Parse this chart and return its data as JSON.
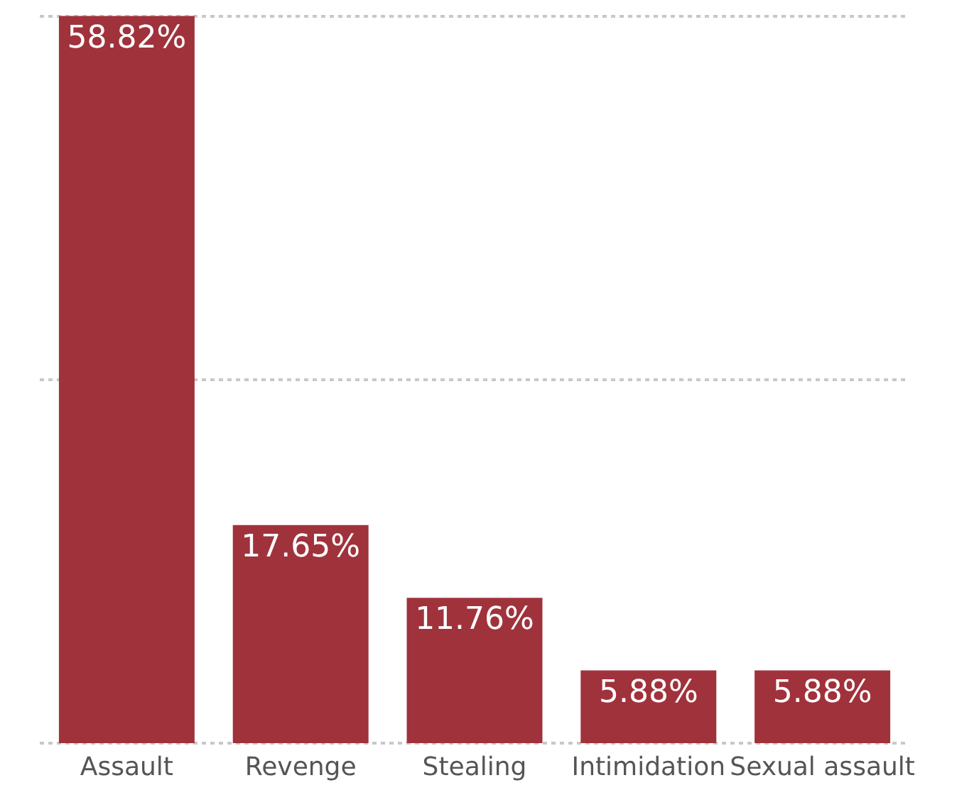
{
  "chart_data": {
    "type": "bar",
    "categories": [
      "Assault",
      "Revenge",
      "Stealing",
      "Intimidation",
      "Sexual assault"
    ],
    "values": [
      58.82,
      17.65,
      11.76,
      5.88,
      5.88
    ],
    "value_labels": [
      "58.82%",
      "17.65%",
      "11.76%",
      "5.88%",
      "5.88%"
    ],
    "color": "#a0323c",
    "ylim": [
      -0.4,
      59.2
    ],
    "yticks": [
      {
        "value": 0,
        "label": null
      },
      {
        "value": 29.41,
        "label": null
      },
      {
        "value": 58.82,
        "label": null
      }
    ],
    "grid": "y",
    "tick_labels": "x"
  }
}
